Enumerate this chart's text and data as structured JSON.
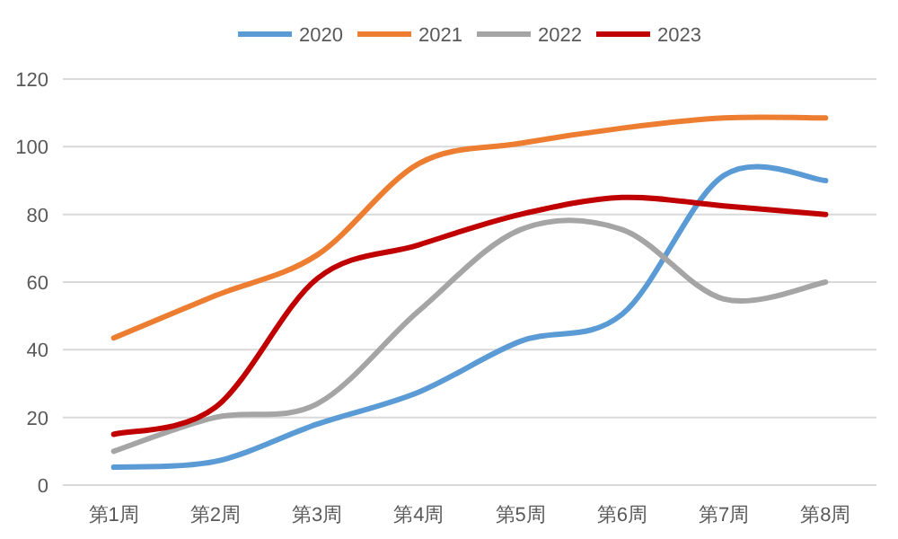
{
  "chart_data": {
    "type": "line",
    "categories": [
      "第1周",
      "第2周",
      "第3周",
      "第4周",
      "第5周",
      "第6周",
      "第7周",
      "第8周"
    ],
    "series": [
      {
        "name": "2020",
        "color": "#5b9bd5",
        "values": [
          5.3,
          7,
          18,
          27.5,
          42.5,
          50.5,
          91.5,
          90
        ]
      },
      {
        "name": "2021",
        "color": "#ed7d31",
        "values": [
          43.5,
          56,
          68,
          95,
          101,
          105.5,
          108.5,
          108.5
        ]
      },
      {
        "name": "2022",
        "color": "#a5a5a5",
        "values": [
          10,
          20,
          24,
          51.5,
          75.5,
          75.5,
          55,
          60
        ]
      },
      {
        "name": "2023",
        "color": "#c00000",
        "values": [
          15,
          23,
          61,
          71,
          80,
          85,
          82.5,
          80
        ]
      }
    ],
    "ylim": [
      0,
      120
    ],
    "yticks": [
      0,
      20,
      40,
      60,
      80,
      100,
      120
    ],
    "grid": "y",
    "legend": "top",
    "marker": "none",
    "line_style": "solid"
  }
}
